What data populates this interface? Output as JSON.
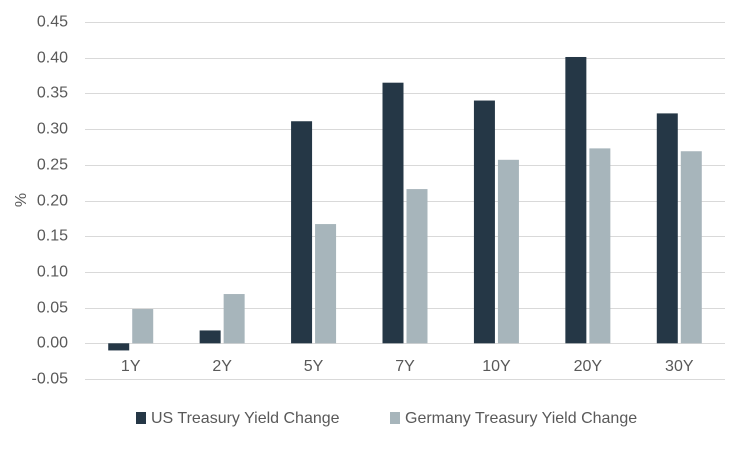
{
  "chart_data": {
    "type": "bar",
    "title": "",
    "xlabel": "",
    "ylabel": "%",
    "categories": [
      "1Y",
      "2Y",
      "5Y",
      "7Y",
      "10Y",
      "20Y",
      "30Y"
    ],
    "series": [
      {
        "name": "US Treasury Yield Change",
        "values": [
          -0.01,
          0.018,
          0.311,
          0.365,
          0.34,
          0.401,
          0.322
        ],
        "color": "#253746"
      },
      {
        "name": "Germany Treasury Yield Change",
        "values": [
          0.048,
          0.069,
          0.167,
          0.216,
          0.257,
          0.273,
          0.269
        ],
        "color": "#a7b5bb"
      }
    ],
    "ylim": [
      -0.05,
      0.45
    ],
    "yticks": [
      -0.05,
      0.0,
      0.05,
      0.1,
      0.15,
      0.2,
      0.25,
      0.3,
      0.35,
      0.4,
      0.45
    ],
    "ytick_labels": [
      "-0.05",
      "0.00",
      "0.05",
      "0.10",
      "0.15",
      "0.20",
      "0.25",
      "0.30",
      "0.35",
      "0.40",
      "0.45"
    ],
    "grid": true,
    "legend_position": "bottom"
  }
}
